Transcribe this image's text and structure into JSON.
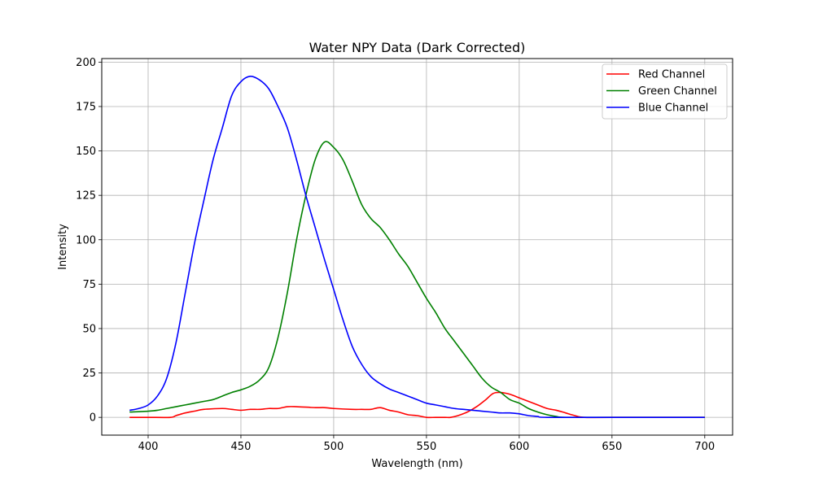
{
  "chart_data": {
    "type": "line",
    "title": "Water NPY Data (Dark Corrected)",
    "xlabel": "Wavelength (nm)",
    "ylabel": "Intensity",
    "xlim": [
      375,
      715
    ],
    "ylim": [
      -10,
      202
    ],
    "xticks": [
      400,
      450,
      500,
      550,
      600,
      650,
      700
    ],
    "yticks": [
      0,
      25,
      50,
      75,
      100,
      125,
      150,
      175,
      200
    ],
    "grid": true,
    "legend_position": "top-right",
    "series": [
      {
        "name": "Red Channel",
        "color": "#ff0000",
        "points": [
          [
            390,
            0
          ],
          [
            400,
            0
          ],
          [
            412,
            0
          ],
          [
            415,
            1
          ],
          [
            420,
            2.5
          ],
          [
            425,
            3.5
          ],
          [
            430,
            4.5
          ],
          [
            440,
            5
          ],
          [
            445,
            4.5
          ],
          [
            450,
            4
          ],
          [
            455,
            4.5
          ],
          [
            460,
            4.5
          ],
          [
            465,
            5
          ],
          [
            470,
            5
          ],
          [
            475,
            6
          ],
          [
            480,
            6
          ],
          [
            490,
            5.5
          ],
          [
            495,
            5.5
          ],
          [
            500,
            5
          ],
          [
            510,
            4.5
          ],
          [
            515,
            4.5
          ],
          [
            520,
            4.5
          ],
          [
            525,
            5.5
          ],
          [
            530,
            4
          ],
          [
            535,
            3
          ],
          [
            540,
            1.5
          ],
          [
            545,
            1
          ],
          [
            550,
            0
          ],
          [
            555,
            0
          ],
          [
            560,
            0
          ],
          [
            563,
            0
          ],
          [
            567,
            1
          ],
          [
            572,
            3
          ],
          [
            577,
            6
          ],
          [
            582,
            10
          ],
          [
            586,
            13.5
          ],
          [
            590,
            14
          ],
          [
            595,
            13
          ],
          [
            600,
            11
          ],
          [
            605,
            9
          ],
          [
            610,
            7
          ],
          [
            615,
            5
          ],
          [
            620,
            4
          ],
          [
            625,
            2.5
          ],
          [
            630,
            1
          ],
          [
            635,
            0
          ],
          [
            650,
            0
          ],
          [
            700,
            0
          ]
        ]
      },
      {
        "name": "Green Channel",
        "color": "#008000",
        "points": [
          [
            390,
            3
          ],
          [
            400,
            3.5
          ],
          [
            405,
            4
          ],
          [
            410,
            5
          ],
          [
            415,
            6
          ],
          [
            420,
            7
          ],
          [
            425,
            8
          ],
          [
            430,
            9
          ],
          [
            435,
            10
          ],
          [
            440,
            12
          ],
          [
            445,
            14
          ],
          [
            450,
            15.5
          ],
          [
            455,
            17.5
          ],
          [
            460,
            21
          ],
          [
            465,
            28
          ],
          [
            470,
            45
          ],
          [
            475,
            70
          ],
          [
            480,
            100
          ],
          [
            485,
            125
          ],
          [
            490,
            145
          ],
          [
            495,
            155
          ],
          [
            500,
            152
          ],
          [
            505,
            145
          ],
          [
            510,
            133
          ],
          [
            515,
            120
          ],
          [
            520,
            112
          ],
          [
            525,
            107
          ],
          [
            530,
            100
          ],
          [
            535,
            92
          ],
          [
            540,
            85
          ],
          [
            545,
            76
          ],
          [
            550,
            67
          ],
          [
            555,
            59
          ],
          [
            560,
            50
          ],
          [
            565,
            43
          ],
          [
            570,
            36
          ],
          [
            575,
            29
          ],
          [
            580,
            22
          ],
          [
            585,
            17
          ],
          [
            590,
            14
          ],
          [
            595,
            10
          ],
          [
            600,
            8
          ],
          [
            605,
            5
          ],
          [
            610,
            3
          ],
          [
            615,
            1.5
          ],
          [
            620,
            0.5
          ],
          [
            625,
            0
          ],
          [
            650,
            0
          ],
          [
            700,
            0
          ]
        ]
      },
      {
        "name": "Blue Channel",
        "color": "#0000ff",
        "points": [
          [
            390,
            4
          ],
          [
            395,
            5
          ],
          [
            400,
            7
          ],
          [
            405,
            12
          ],
          [
            410,
            22
          ],
          [
            415,
            42
          ],
          [
            420,
            70
          ],
          [
            425,
            98
          ],
          [
            430,
            122
          ],
          [
            435,
            145
          ],
          [
            440,
            163
          ],
          [
            445,
            181
          ],
          [
            450,
            189
          ],
          [
            455,
            192
          ],
          [
            460,
            190
          ],
          [
            465,
            185
          ],
          [
            470,
            175
          ],
          [
            475,
            163
          ],
          [
            480,
            145
          ],
          [
            485,
            125
          ],
          [
            490,
            107
          ],
          [
            495,
            89
          ],
          [
            500,
            72
          ],
          [
            505,
            55
          ],
          [
            510,
            40
          ],
          [
            515,
            30
          ],
          [
            520,
            23
          ],
          [
            525,
            19
          ],
          [
            530,
            16
          ],
          [
            535,
            14
          ],
          [
            540,
            12
          ],
          [
            545,
            10
          ],
          [
            550,
            8
          ],
          [
            555,
            7
          ],
          [
            560,
            6
          ],
          [
            565,
            5
          ],
          [
            570,
            4.5
          ],
          [
            575,
            4
          ],
          [
            580,
            3.5
          ],
          [
            585,
            3
          ],
          [
            590,
            2.5
          ],
          [
            595,
            2.5
          ],
          [
            600,
            2
          ],
          [
            605,
            1
          ],
          [
            610,
            0.5
          ],
          [
            615,
            0
          ],
          [
            650,
            0
          ],
          [
            700,
            0
          ]
        ]
      }
    ]
  }
}
